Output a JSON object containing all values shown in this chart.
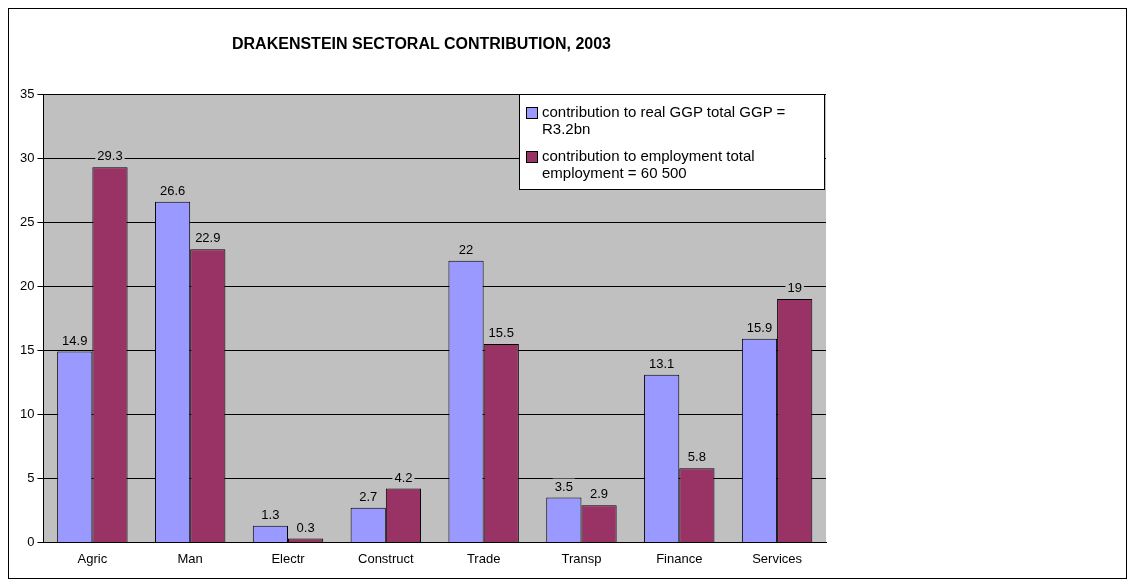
{
  "chart_data": {
    "type": "bar",
    "title": "DRAKENSTEIN SECTORAL CONTRIBUTION, 2003",
    "categories": [
      "Agric",
      "Man",
      "Electr",
      "Construct",
      "Trade",
      "Transp",
      "Finance",
      "Services"
    ],
    "series": [
      {
        "name": "contribution to real GGP total GGP = R3.2bn",
        "color": "#9999ff",
        "values": [
          14.9,
          26.6,
          1.3,
          2.7,
          22,
          3.5,
          13.1,
          15.9
        ]
      },
      {
        "name": "contribution to employment total employment = 60 500",
        "color": "#993366",
        "values": [
          29.3,
          22.9,
          0.3,
          4.2,
          15.5,
          2.9,
          5.8,
          19
        ]
      }
    ],
    "ylim": [
      0,
      35
    ],
    "yticks": [
      0,
      5,
      10,
      15,
      20,
      25,
      30,
      35
    ],
    "grid": "y",
    "legend": "top right",
    "data_labels": true
  }
}
